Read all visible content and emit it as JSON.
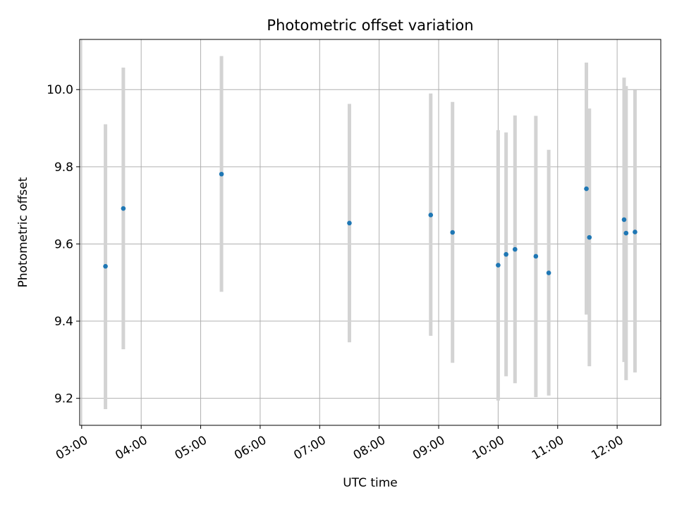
{
  "chart_data": {
    "type": "scatter",
    "title": "Photometric offset variation",
    "xlabel": "UTC time",
    "ylabel": "Photometric offset",
    "x_unit": "UTC time of day (HH:MM)",
    "xlim": [
      "02:58",
      "12:44"
    ],
    "ylim": [
      9.13,
      10.13
    ],
    "x_ticks": [
      "03:00",
      "04:00",
      "05:00",
      "06:00",
      "07:00",
      "08:00",
      "09:00",
      "10:00",
      "11:00",
      "12:00"
    ],
    "y_ticks": [
      9.2,
      9.4,
      9.6,
      9.8,
      10.0
    ],
    "y_tick_labels": [
      "9.2",
      "9.4",
      "9.6",
      "9.8",
      "10.0"
    ],
    "grid": true,
    "legend": "none",
    "colors": {
      "point": "#1f77b4",
      "errorbar": "#d3d3d3",
      "grid": "#b0b0b0"
    },
    "points": [
      {
        "x": "03:24",
        "y": 9.542,
        "low": 9.172,
        "high": 9.91
      },
      {
        "x": "03:42",
        "y": 9.692,
        "low": 9.327,
        "high": 10.057
      },
      {
        "x": "05:21",
        "y": 9.781,
        "low": 9.476,
        "high": 10.087
      },
      {
        "x": "07:30",
        "y": 9.654,
        "low": 9.345,
        "high": 9.963
      },
      {
        "x": "08:52",
        "y": 9.675,
        "low": 9.362,
        "high": 9.99
      },
      {
        "x": "09:14",
        "y": 9.63,
        "low": 9.292,
        "high": 9.968
      },
      {
        "x": "10:00",
        "y": 9.545,
        "low": 9.194,
        "high": 9.895
      },
      {
        "x": "10:08",
        "y": 9.573,
        "low": 9.257,
        "high": 9.889
      },
      {
        "x": "10:17",
        "y": 9.586,
        "low": 9.239,
        "high": 9.933
      },
      {
        "x": "10:38",
        "y": 9.568,
        "low": 9.203,
        "high": 9.932
      },
      {
        "x": "10:51",
        "y": 9.525,
        "low": 9.207,
        "high": 9.844
      },
      {
        "x": "11:29",
        "y": 9.743,
        "low": 9.417,
        "high": 10.07
      },
      {
        "x": "11:32",
        "y": 9.617,
        "low": 9.283,
        "high": 9.951
      },
      {
        "x": "12:07",
        "y": 9.663,
        "low": 9.294,
        "high": 10.031
      },
      {
        "x": "12:09",
        "y": 9.628,
        "low": 9.247,
        "high": 10.009
      },
      {
        "x": "12:18",
        "y": 9.631,
        "low": 9.267,
        "high": 9.999
      }
    ]
  }
}
